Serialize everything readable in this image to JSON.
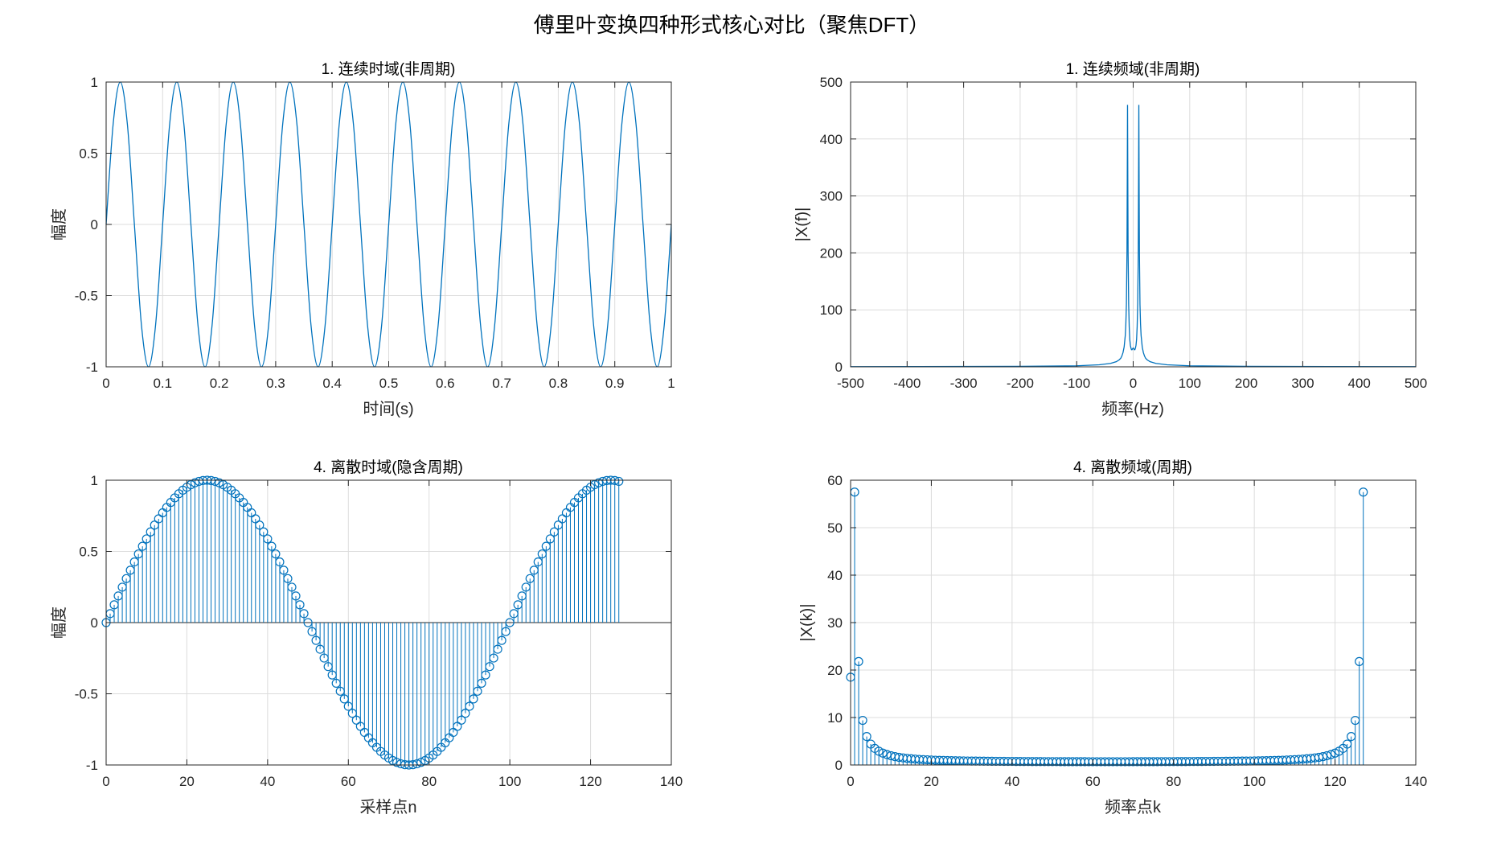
{
  "figure": {
    "title": "傅里叶变换四种形式核心对比（聚焦DFT）",
    "series_color": "#0072BD"
  },
  "chart_data": [
    {
      "id": "ct",
      "type": "line",
      "title": "1. 连续时域(非周期)",
      "xlabel": "时间(s)",
      "ylabel": "幅度",
      "xlim": [
        0,
        1
      ],
      "ylim": [
        -1,
        1
      ],
      "xticks": [
        0,
        0.1,
        0.2,
        0.3,
        0.4,
        0.5,
        0.6,
        0.7,
        0.8,
        0.9,
        1
      ],
      "yticks": [
        -1,
        -0.5,
        0,
        0.5,
        1
      ],
      "xtick_labels": [
        "0",
        "0.1",
        "0.2",
        "0.3",
        "0.4",
        "0.5",
        "0.6",
        "0.7",
        "0.8",
        "0.9",
        "1"
      ],
      "ytick_labels": [
        "-1",
        "-0.5",
        "0",
        "0.5",
        "1"
      ],
      "grid": true,
      "series": [
        {
          "x": [
            0,
            0.0125,
            0.025,
            0.0375,
            0.05,
            0.0625,
            0.075,
            0.0875,
            0.1,
            0.1125,
            0.125,
            0.1375,
            0.15,
            0.1625,
            0.175,
            0.1875,
            0.2,
            0.2125,
            0.225,
            0.2375,
            0.25,
            0.2625,
            0.275,
            0.2875,
            0.3,
            0.3125,
            0.325,
            0.3375,
            0.35,
            0.3625,
            0.375,
            0.3875,
            0.4,
            0.4125,
            0.425,
            0.4375,
            0.45,
            0.4625,
            0.475,
            0.4875,
            0.5,
            0.5125,
            0.525,
            0.5375,
            0.55,
            0.5625,
            0.575,
            0.5875,
            0.6,
            0.6125,
            0.625,
            0.6375,
            0.65,
            0.6625,
            0.675,
            0.6875,
            0.7,
            0.7125,
            0.725,
            0.7375,
            0.75,
            0.7625,
            0.775,
            0.7875,
            0.8,
            0.8125,
            0.825,
            0.8375,
            0.85,
            0.8625,
            0.875,
            0.8875,
            0.9,
            0.9125,
            0.925,
            0.9375,
            0.95,
            0.9625,
            0.975,
            0.9875,
            1
          ],
          "y": [
            0,
            0.707,
            1,
            0.707,
            0,
            -0.707,
            -1,
            -0.707,
            0,
            0.707,
            1,
            0.707,
            0,
            -0.707,
            -1,
            -0.707,
            0,
            0.707,
            1,
            0.707,
            0,
            -0.707,
            -1,
            -0.707,
            0,
            0.707,
            1,
            0.707,
            0,
            -0.707,
            -1,
            -0.707,
            0,
            0.707,
            1,
            0.707,
            0,
            -0.707,
            -1,
            -0.707,
            0,
            0.707,
            1,
            0.707,
            0,
            -0.707,
            -1,
            -0.707,
            0,
            0.707,
            1,
            0.707,
            0,
            -0.707,
            -1,
            -0.707,
            0,
            0.707,
            1,
            0.707,
            0,
            -0.707,
            -1,
            -0.707,
            0,
            0.707,
            1,
            0.707,
            0,
            -0.707,
            -1,
            -0.707,
            0,
            0.707,
            1,
            0.707,
            0,
            -0.707,
            -1,
            -0.707,
            0
          ]
        }
      ]
    },
    {
      "id": "cf",
      "type": "line",
      "title": "1. 连续频域(非周期)",
      "xlabel": "频率(Hz)",
      "ylabel": "|X(f)|",
      "xlim": [
        -500,
        500
      ],
      "ylim": [
        0,
        500
      ],
      "xticks": [
        -500,
        -400,
        -300,
        -200,
        -100,
        0,
        100,
        200,
        300,
        400,
        500
      ],
      "yticks": [
        0,
        100,
        200,
        300,
        400,
        500
      ],
      "xtick_labels": [
        "-500",
        "-400",
        "-300",
        "-200",
        "-100",
        "0",
        "100",
        "200",
        "300",
        "400",
        "500"
      ],
      "ytick_labels": [
        "0",
        "100",
        "200",
        "300",
        "400",
        "500"
      ],
      "grid": true,
      "series": [
        {
          "x": [
            -500,
            -200,
            -100,
            -60,
            -40,
            -30,
            -25,
            -22,
            -20,
            -18,
            -16,
            -14,
            -13,
            -12,
            -11,
            -10.5,
            -10,
            -9.5,
            -9,
            -8,
            -7,
            -6,
            -5,
            -4,
            -3,
            -2,
            -1,
            0,
            1,
            2,
            3,
            4,
            5,
            6,
            7,
            8,
            9,
            9.5,
            10,
            10.5,
            11,
            12,
            13,
            14,
            16,
            18,
            20,
            22,
            25,
            30,
            40,
            60,
            100,
            200,
            500
          ],
          "y": [
            0.3,
            0.8,
            1.8,
            3.5,
            6,
            9,
            12,
            15,
            19,
            25,
            35,
            55,
            75,
            110,
            200,
            320,
            460,
            320,
            200,
            110,
            70,
            48,
            38,
            33,
            30,
            30,
            32,
            33,
            32,
            30,
            30,
            33,
            38,
            48,
            70,
            110,
            200,
            320,
            460,
            320,
            200,
            110,
            75,
            55,
            35,
            25,
            19,
            15,
            12,
            9,
            6,
            3.5,
            1.8,
            0.8,
            0.3
          ]
        }
      ]
    },
    {
      "id": "dt",
      "type": "stem",
      "title": "4. 离散时域(隐含周期)",
      "xlabel": "采样点n",
      "ylabel": "幅度",
      "xlim": [
        0,
        140
      ],
      "ylim": [
        -1,
        1
      ],
      "xticks": [
        0,
        20,
        40,
        60,
        80,
        100,
        120,
        140
      ],
      "yticks": [
        -1,
        -0.5,
        0,
        0.5,
        1
      ],
      "xtick_labels": [
        "0",
        "20",
        "40",
        "60",
        "80",
        "100",
        "120",
        "140"
      ],
      "ytick_labels": [
        "-1",
        "-0.5",
        "0",
        "0.5",
        "1"
      ],
      "grid": true,
      "series": [
        {
          "n": [
            0,
            1,
            2,
            3,
            4,
            5,
            6,
            7,
            8,
            9,
            10,
            11,
            12,
            13,
            14,
            15,
            16,
            17,
            18,
            19,
            20,
            21,
            22,
            23,
            24,
            25,
            26,
            27,
            28,
            29,
            30,
            31,
            32,
            33,
            34,
            35,
            36,
            37,
            38,
            39,
            40,
            41,
            42,
            43,
            44,
            45,
            46,
            47,
            48,
            49,
            50,
            51,
            52,
            53,
            54,
            55,
            56,
            57,
            58,
            59,
            60,
            61,
            62,
            63,
            64,
            65,
            66,
            67,
            68,
            69,
            70,
            71,
            72,
            73,
            74,
            75,
            76,
            77,
            78,
            79,
            80,
            81,
            82,
            83,
            84,
            85,
            86,
            87,
            88,
            89,
            90,
            91,
            92,
            93,
            94,
            95,
            96,
            97,
            98,
            99,
            100,
            101,
            102,
            103,
            104,
            105,
            106,
            107,
            108,
            109,
            110,
            111,
            112,
            113,
            114,
            115,
            116,
            117,
            118,
            119,
            120,
            121,
            122,
            123,
            124,
            125,
            126,
            127
          ],
          "y": [
            0,
            0.063,
            0.125,
            0.187,
            0.249,
            0.309,
            0.368,
            0.426,
            0.482,
            0.536,
            0.588,
            0.637,
            0.685,
            0.729,
            0.771,
            0.809,
            0.844,
            0.876,
            0.905,
            0.93,
            0.951,
            0.969,
            0.982,
            0.992,
            0.998,
            1.0,
            0.998,
            0.992,
            0.982,
            0.969,
            0.951,
            0.93,
            0.905,
            0.876,
            0.844,
            0.809,
            0.771,
            0.729,
            0.685,
            0.637,
            0.588,
            0.536,
            0.482,
            0.426,
            0.368,
            0.309,
            0.249,
            0.187,
            0.125,
            0.063,
            0.0,
            -0.063,
            -0.125,
            -0.187,
            -0.249,
            -0.309,
            -0.368,
            -0.426,
            -0.482,
            -0.536,
            -0.588,
            -0.637,
            -0.685,
            -0.729,
            -0.771,
            -0.809,
            -0.844,
            -0.876,
            -0.905,
            -0.93,
            -0.951,
            -0.969,
            -0.982,
            -0.992,
            -0.998,
            -1.0,
            -0.998,
            -0.992,
            -0.982,
            -0.969,
            -0.951,
            -0.93,
            -0.905,
            -0.876,
            -0.844,
            -0.809,
            -0.771,
            -0.729,
            -0.685,
            -0.637,
            -0.588,
            -0.536,
            -0.482,
            -0.426,
            -0.368,
            -0.309,
            -0.249,
            -0.187,
            -0.125,
            -0.063,
            0.0,
            0.063,
            0.125,
            0.187,
            0.249,
            0.309,
            0.368,
            0.426,
            0.482,
            0.536,
            0.588,
            0.637,
            0.685,
            0.729,
            0.771,
            0.809,
            0.844,
            0.876,
            0.905,
            0.93,
            0.951,
            0.969,
            0.982,
            0.992,
            0.998,
            1.0,
            0.998,
            0.992
          ]
        }
      ]
    },
    {
      "id": "df",
      "type": "stem",
      "title": "4. 离散频域(周期)",
      "xlabel": "频率点k",
      "ylabel": "|X(k)|",
      "xlim": [
        0,
        140
      ],
      "ylim": [
        0,
        60
      ],
      "xticks": [
        0,
        20,
        40,
        60,
        80,
        100,
        120,
        140
      ],
      "yticks": [
        0,
        10,
        20,
        30,
        40,
        50,
        60
      ],
      "xtick_labels": [
        "0",
        "20",
        "40",
        "60",
        "80",
        "100",
        "120",
        "140"
      ],
      "ytick_labels": [
        "0",
        "10",
        "20",
        "30",
        "40",
        "50",
        "60"
      ],
      "grid": true,
      "series": [
        {
          "k": [
            0,
            1,
            2,
            3,
            4,
            5,
            6,
            7,
            8,
            9,
            10,
            11,
            12,
            13,
            14,
            15,
            16,
            17,
            18,
            19,
            20,
            21,
            22,
            23,
            24,
            25,
            26,
            27,
            28,
            29,
            30,
            31,
            32,
            33,
            34,
            35,
            36,
            37,
            38,
            39,
            40,
            41,
            42,
            43,
            44,
            45,
            46,
            47,
            48,
            49,
            50,
            51,
            52,
            53,
            54,
            55,
            56,
            57,
            58,
            59,
            60,
            61,
            62,
            63,
            64,
            65,
            66,
            67,
            68,
            69,
            70,
            71,
            72,
            73,
            74,
            75,
            76,
            77,
            78,
            79,
            80,
            81,
            82,
            83,
            84,
            85,
            86,
            87,
            88,
            89,
            90,
            91,
            92,
            93,
            94,
            95,
            96,
            97,
            98,
            99,
            100,
            101,
            102,
            103,
            104,
            105,
            106,
            107,
            108,
            109,
            110,
            111,
            112,
            113,
            114,
            115,
            116,
            117,
            118,
            119,
            120,
            121,
            122,
            123,
            124,
            125,
            126,
            127
          ],
          "y": [
            18.5,
            57.5,
            21.8,
            9.4,
            6.0,
            4.4,
            3.5,
            2.9,
            2.5,
            2.2,
            1.95,
            1.76,
            1.61,
            1.49,
            1.39,
            1.31,
            1.24,
            1.18,
            1.13,
            1.09,
            1.05,
            1.01,
            0.98,
            0.96,
            0.93,
            0.91,
            0.89,
            0.87,
            0.86,
            0.84,
            0.83,
            0.82,
            0.81,
            0.8,
            0.79,
            0.78,
            0.77,
            0.77,
            0.76,
            0.75,
            0.75,
            0.74,
            0.74,
            0.73,
            0.73,
            0.72,
            0.72,
            0.72,
            0.71,
            0.71,
            0.71,
            0.71,
            0.7,
            0.7,
            0.7,
            0.7,
            0.7,
            0.7,
            0.7,
            0.69,
            0.69,
            0.69,
            0.69,
            0.69,
            0.69,
            0.69,
            0.69,
            0.69,
            0.69,
            0.69,
            0.7,
            0.7,
            0.7,
            0.7,
            0.7,
            0.7,
            0.7,
            0.71,
            0.71,
            0.71,
            0.71,
            0.72,
            0.72,
            0.72,
            0.73,
            0.73,
            0.74,
            0.74,
            0.75,
            0.75,
            0.76,
            0.77,
            0.77,
            0.78,
            0.79,
            0.8,
            0.81,
            0.82,
            0.83,
            0.84,
            0.86,
            0.87,
            0.89,
            0.91,
            0.93,
            0.96,
            0.98,
            1.01,
            1.05,
            1.09,
            1.13,
            1.18,
            1.24,
            1.31,
            1.39,
            1.49,
            1.61,
            1.76,
            1.95,
            2.2,
            2.5,
            2.9,
            3.5,
            4.4,
            6.0,
            9.4,
            21.8,
            57.5
          ]
        }
      ]
    }
  ]
}
